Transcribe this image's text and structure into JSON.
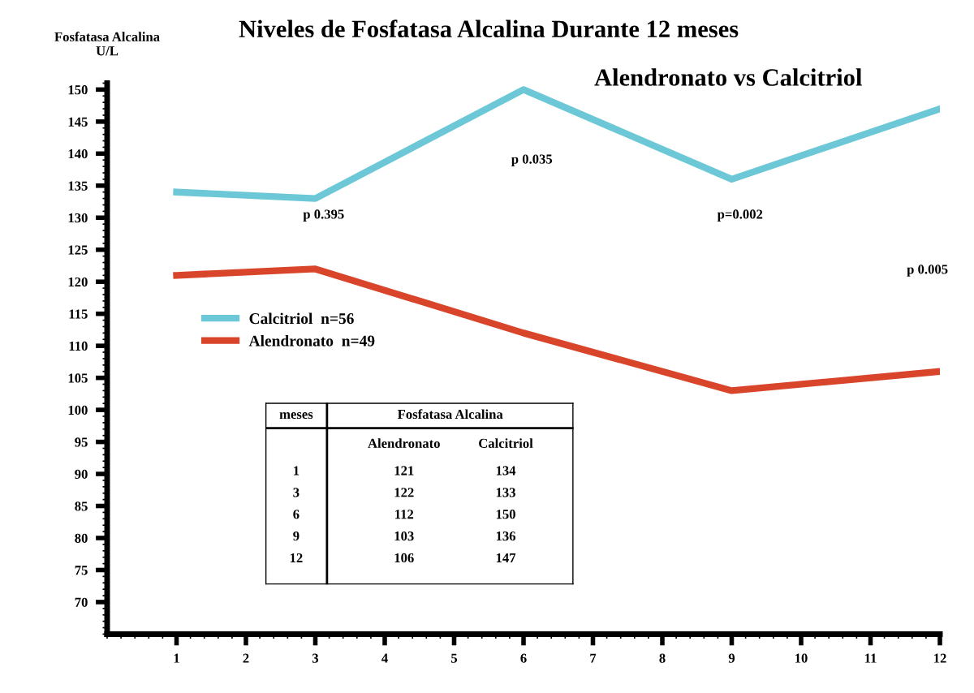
{
  "chart_data": {
    "type": "line",
    "title": "Niveles de Fosfatasa Alcalina Durante 12 meses",
    "subtitle": "Alendronato vs Calcitriol",
    "ylabel": "Fosfatasa Alcalina\nU/L",
    "x": [
      1,
      3,
      6,
      9,
      12
    ],
    "series": [
      {
        "name": "Calcitriol  n=56",
        "color": "#6cc8d6",
        "values": [
          134,
          133,
          150,
          136,
          147
        ]
      },
      {
        "name": "Alendronato  n=49",
        "color": "#d9452b",
        "values": [
          121,
          122,
          112,
          103,
          106
        ]
      }
    ],
    "xlim": [
      0,
      12
    ],
    "xticks": [
      1,
      2,
      3,
      4,
      5,
      6,
      7,
      8,
      9,
      10,
      11,
      12
    ],
    "ylim": [
      65,
      151
    ],
    "yticks": [
      70,
      75,
      80,
      85,
      90,
      95,
      100,
      105,
      110,
      115,
      120,
      125,
      130,
      135,
      140,
      145,
      150
    ],
    "grid": false,
    "legend": "center left",
    "marker": "none",
    "line_style": "solid",
    "annotations": [
      "p 0.395",
      "p 0.035",
      "p=0.002",
      "p 0.005",
      "meses",
      "Fosfatasa Alcalina",
      "Alendronato",
      "Calcitriol",
      "1",
      "121",
      "134",
      "3",
      "122",
      "133",
      "6",
      "112",
      "150",
      "9",
      "103",
      "136",
      "12",
      "106",
      "147"
    ]
  }
}
